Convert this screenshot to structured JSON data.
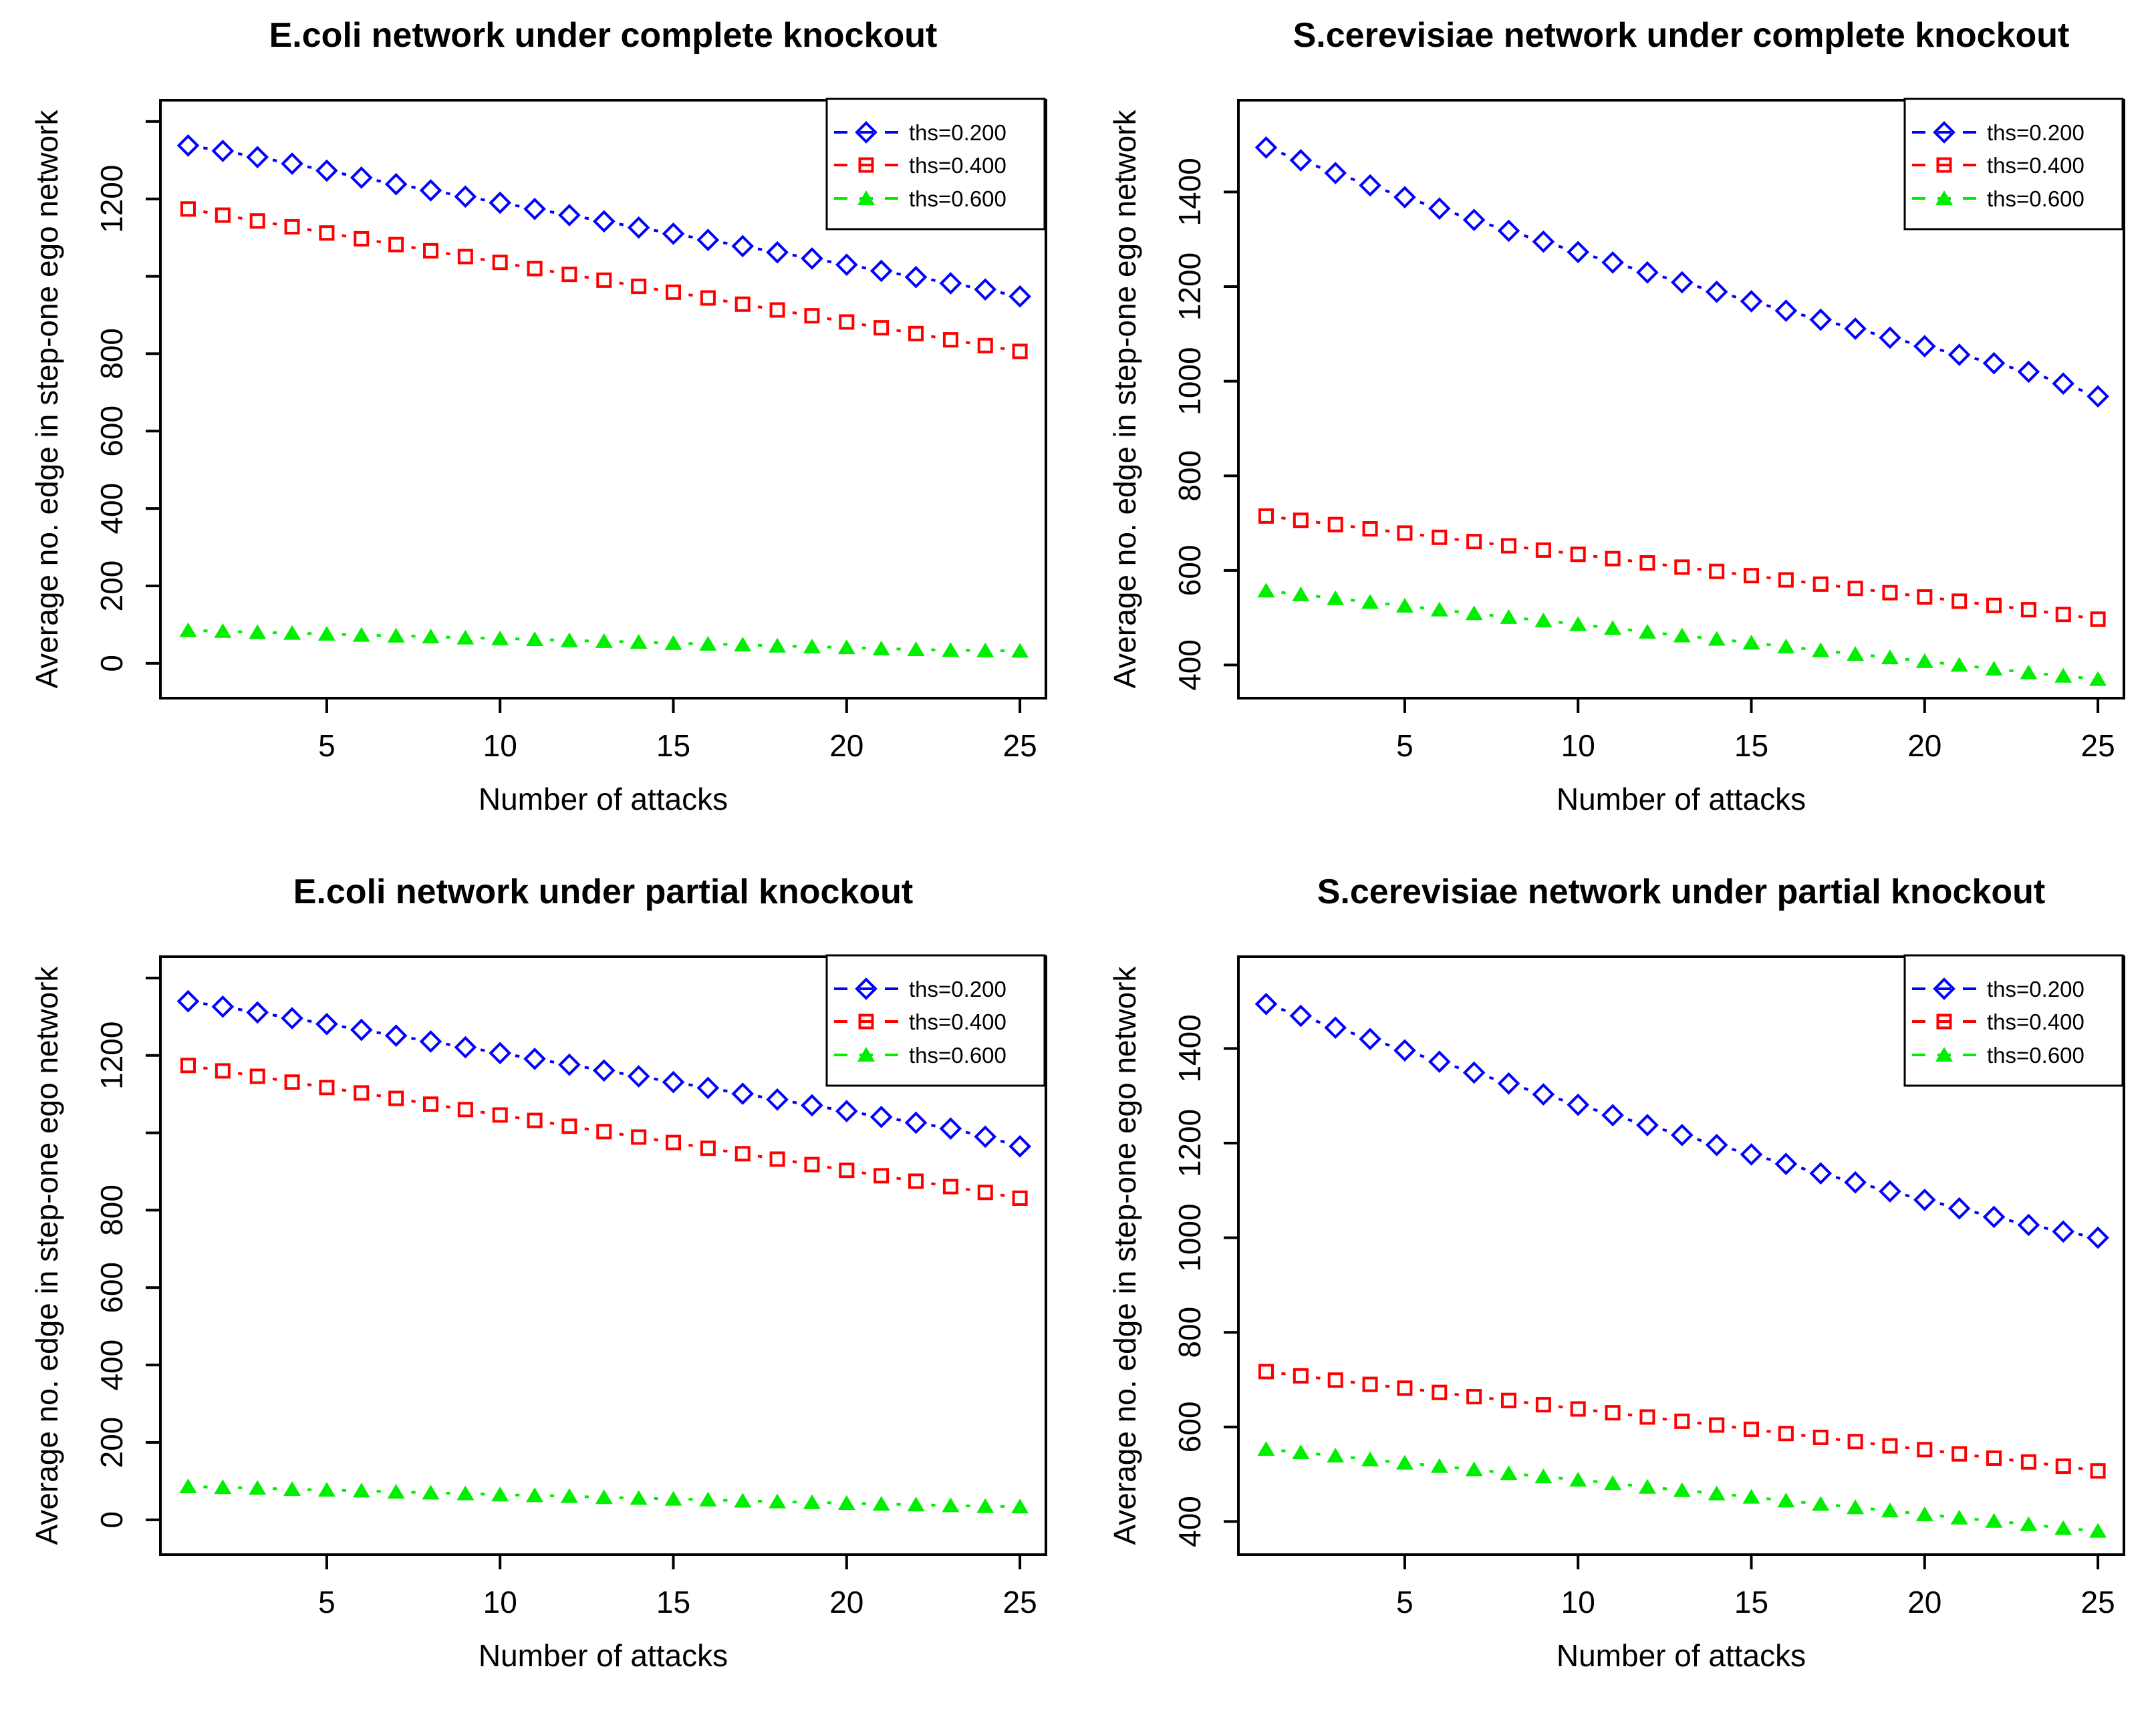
{
  "figure": {
    "background": "#ffffff",
    "text_color": "#000000",
    "xlabel": "Number of attacks",
    "ylabel": "Average no. edge in step-one ego network",
    "legend": {
      "position": "top-right",
      "entries": [
        {
          "label": "ths=0.200",
          "color": "#0000ff",
          "marker": "diamond-open",
          "linestyle": "dashed"
        },
        {
          "label": "ths=0.400",
          "color": "#ff0000",
          "marker": "square-open",
          "linestyle": "dashed"
        },
        {
          "label": "ths=0.600",
          "color": "#00ee00",
          "marker": "triangle-filled",
          "linestyle": "dashed"
        }
      ]
    }
  },
  "chart_data": [
    {
      "type": "scatter",
      "title": "E.coli network under complete knockout",
      "xlabel": "Number of attacks",
      "ylabel": "Average no. edge in step-one ego network",
      "grid": false,
      "legend_position": "top-right",
      "x": [
        1,
        2,
        3,
        4,
        5,
        6,
        7,
        8,
        9,
        10,
        11,
        12,
        13,
        14,
        15,
        16,
        17,
        18,
        19,
        20,
        21,
        22,
        23,
        24,
        25
      ],
      "x_ticks": [
        5,
        10,
        15,
        20,
        25
      ],
      "xlim": [
        0.2,
        25.75
      ],
      "ylim": [
        -90,
        1455
      ],
      "y_ticks": [
        {
          "v": 0,
          "label": "0"
        },
        {
          "v": 200,
          "label": "200"
        },
        {
          "v": 400,
          "label": "400"
        },
        {
          "v": 600,
          "label": "600"
        },
        {
          "v": 800,
          "label": "800"
        },
        {
          "v": 1000,
          "label": ""
        },
        {
          "v": 1200,
          "label": "1200"
        },
        {
          "v": 1400,
          "label": ""
        }
      ],
      "series": [
        {
          "name": "ths=0.200",
          "color": "#0000ff",
          "marker": "diamond-open",
          "values": [
            1338,
            1324,
            1308,
            1291,
            1273,
            1255,
            1238,
            1222,
            1206,
            1190,
            1174,
            1158,
            1142,
            1126,
            1110,
            1094,
            1078,
            1062,
            1046,
            1030,
            1014,
            998,
            982,
            966,
            948
          ]
        },
        {
          "name": "ths=0.400",
          "color": "#ff0000",
          "marker": "square-open",
          "values": [
            1174,
            1158,
            1143,
            1128,
            1112,
            1097,
            1082,
            1066,
            1051,
            1036,
            1020,
            1005,
            990,
            974,
            959,
            944,
            928,
            913,
            898,
            882,
            867,
            852,
            836,
            821,
            806
          ]
        },
        {
          "name": "ths=0.600",
          "color": "#00ee00",
          "marker": "triangle-filled",
          "values": [
            85,
            83,
            80,
            78,
            76,
            73,
            71,
            69,
            66,
            64,
            62,
            59,
            57,
            55,
            52,
            50,
            48,
            45,
            43,
            41,
            38,
            36,
            34,
            33,
            32
          ]
        }
      ]
    },
    {
      "type": "scatter",
      "title": "S.cerevisiae network under complete knockout",
      "xlabel": "Number of attacks",
      "ylabel": "Average no. edge in step-one ego network",
      "grid": false,
      "legend_position": "top-right",
      "x": [
        1,
        2,
        3,
        4,
        5,
        6,
        7,
        8,
        9,
        10,
        11,
        12,
        13,
        14,
        15,
        16,
        17,
        18,
        19,
        20,
        21,
        22,
        23,
        24,
        25
      ],
      "x_ticks": [
        5,
        10,
        15,
        20,
        25
      ],
      "xlim": [
        0.2,
        25.75
      ],
      "ylim": [
        330,
        1594
      ],
      "y_ticks": [
        {
          "v": 400,
          "label": "400"
        },
        {
          "v": 600,
          "label": "600"
        },
        {
          "v": 800,
          "label": "800"
        },
        {
          "v": 1000,
          "label": "1000"
        },
        {
          "v": 1200,
          "label": "1200"
        },
        {
          "v": 1400,
          "label": "1400"
        }
      ],
      "series": [
        {
          "name": "ths=0.200",
          "color": "#0000ff",
          "marker": "diamond-open",
          "values": [
            1494,
            1467,
            1440,
            1414,
            1389,
            1365,
            1341,
            1318,
            1295,
            1273,
            1251,
            1230,
            1209,
            1189,
            1169,
            1149,
            1130,
            1111,
            1092,
            1074,
            1056,
            1038,
            1020,
            995,
            968
          ]
        },
        {
          "name": "ths=0.400",
          "color": "#ff0000",
          "marker": "square-open",
          "values": [
            715,
            706,
            697,
            688,
            679,
            670,
            661,
            652,
            643,
            634,
            625,
            616,
            607,
            598,
            589,
            580,
            571,
            562,
            553,
            544,
            535,
            526,
            517,
            507,
            497
          ]
        },
        {
          "name": "ths=0.600",
          "color": "#00ee00",
          "marker": "triangle-filled",
          "values": [
            557,
            549,
            541,
            533,
            525,
            517,
            509,
            501,
            494,
            486,
            478,
            470,
            462,
            455,
            447,
            439,
            431,
            423,
            416,
            408,
            400,
            392,
            384,
            377,
            370
          ]
        }
      ]
    },
    {
      "type": "scatter",
      "title": "E.coli network under partial knockout",
      "xlabel": "Number of attacks",
      "ylabel": "Average no. edge in step-one ego network",
      "grid": false,
      "legend_position": "top-right",
      "x": [
        1,
        2,
        3,
        4,
        5,
        6,
        7,
        8,
        9,
        10,
        11,
        12,
        13,
        14,
        15,
        16,
        17,
        18,
        19,
        20,
        21,
        22,
        23,
        24,
        25
      ],
      "x_ticks": [
        5,
        10,
        15,
        20,
        25
      ],
      "xlim": [
        0.2,
        25.75
      ],
      "ylim": [
        -90,
        1455
      ],
      "y_ticks": [
        {
          "v": 0,
          "label": "0"
        },
        {
          "v": 200,
          "label": "200"
        },
        {
          "v": 400,
          "label": "400"
        },
        {
          "v": 600,
          "label": "600"
        },
        {
          "v": 800,
          "label": "800"
        },
        {
          "v": 1000,
          "label": ""
        },
        {
          "v": 1200,
          "label": "1200"
        },
        {
          "v": 1400,
          "label": ""
        }
      ],
      "series": [
        {
          "name": "ths=0.200",
          "color": "#0000ff",
          "marker": "diamond-open",
          "values": [
            1340,
            1326,
            1311,
            1296,
            1281,
            1266,
            1251,
            1236,
            1221,
            1206,
            1191,
            1176,
            1161,
            1146,
            1131,
            1116,
            1101,
            1086,
            1071,
            1056,
            1041,
            1026,
            1011,
            990,
            965
          ]
        },
        {
          "name": "ths=0.400",
          "color": "#ff0000",
          "marker": "square-open",
          "values": [
            1174,
            1160,
            1146,
            1131,
            1117,
            1103,
            1089,
            1074,
            1060,
            1046,
            1032,
            1017,
            1003,
            989,
            975,
            960,
            946,
            932,
            918,
            903,
            889,
            875,
            861,
            846,
            831
          ]
        },
        {
          "name": "ths=0.600",
          "color": "#00ee00",
          "marker": "triangle-filled",
          "values": [
            86,
            84,
            82,
            79,
            77,
            75,
            72,
            70,
            68,
            65,
            63,
            61,
            58,
            56,
            54,
            52,
            49,
            47,
            45,
            43,
            41,
            39,
            37,
            35,
            34
          ]
        }
      ]
    },
    {
      "type": "scatter",
      "title": "S.cerevisiae network under partial knockout",
      "xlabel": "Number of attacks",
      "ylabel": "Average no. edge in step-one ego network",
      "grid": false,
      "legend_position": "top-right",
      "x": [
        1,
        2,
        3,
        4,
        5,
        6,
        7,
        8,
        9,
        10,
        11,
        12,
        13,
        14,
        15,
        16,
        17,
        18,
        19,
        20,
        21,
        22,
        23,
        24,
        25
      ],
      "x_ticks": [
        5,
        10,
        15,
        20,
        25
      ],
      "xlim": [
        0.2,
        25.75
      ],
      "ylim": [
        330,
        1594
      ],
      "y_ticks": [
        {
          "v": 400,
          "label": "400"
        },
        {
          "v": 600,
          "label": "600"
        },
        {
          "v": 800,
          "label": "800"
        },
        {
          "v": 1000,
          "label": "1000"
        },
        {
          "v": 1200,
          "label": "1200"
        },
        {
          "v": 1400,
          "label": "1400"
        }
      ],
      "series": [
        {
          "name": "ths=0.200",
          "color": "#0000ff",
          "marker": "diamond-open",
          "values": [
            1494,
            1469,
            1444,
            1420,
            1396,
            1372,
            1349,
            1326,
            1303,
            1281,
            1259,
            1238,
            1217,
            1196,
            1176,
            1156,
            1136,
            1117,
            1098,
            1080,
            1062,
            1044,
            1027,
            1013,
            1000
          ]
        },
        {
          "name": "ths=0.400",
          "color": "#ff0000",
          "marker": "square-open",
          "values": [
            717,
            708,
            699,
            690,
            682,
            673,
            664,
            656,
            647,
            638,
            630,
            621,
            612,
            604,
            595,
            586,
            578,
            569,
            560,
            552,
            543,
            534,
            526,
            517,
            507
          ]
        },
        {
          "name": "ths=0.600",
          "color": "#00ee00",
          "marker": "triangle-filled",
          "values": [
            553,
            546,
            539,
            531,
            524,
            517,
            510,
            502,
            495,
            488,
            481,
            473,
            466,
            459,
            452,
            444,
            437,
            430,
            423,
            415,
            408,
            401,
            394,
            386,
            380
          ]
        }
      ]
    }
  ]
}
